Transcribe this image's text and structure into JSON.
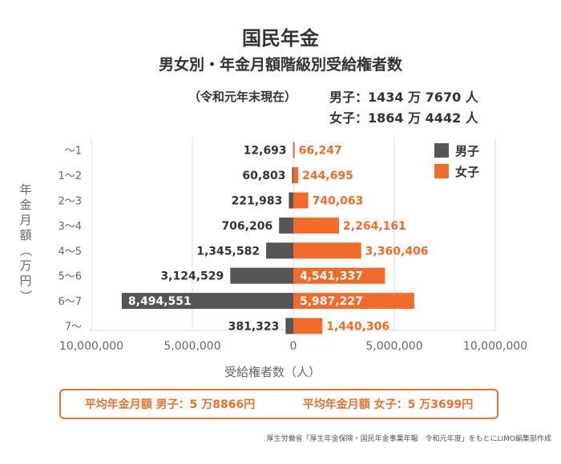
{
  "header": {
    "title": "国民年金",
    "subtitle": "男女別・年金月額階級別受給権者数",
    "as_of": "（令和元年末現在）",
    "male_total": "男子：1434 万 7670 人",
    "female_total": "女子：1864 万 4442 人"
  },
  "summary": {
    "male_avg": "平均年金月額 男子：5 万8866円",
    "female_avg": "平均年金月額 女子：5 万3699円"
  },
  "source": "厚生労働省「厚生年金保険・国民年金事業年報　令和元年度」をもとにLIMO編集部作成",
  "colors": {
    "male": "#555555",
    "female": "#f26b2a",
    "frame": "#e8722f"
  },
  "chart_data": {
    "type": "bar",
    "orientation": "horizontal-butterfly",
    "categories": [
      "〜1",
      "1〜2",
      "2〜3",
      "3〜4",
      "4〜5",
      "5〜6",
      "6〜7",
      "7〜"
    ],
    "series": [
      {
        "name": "男子",
        "values": [
          12693,
          60803,
          221983,
          706206,
          1345582,
          3124529,
          8494551,
          381323
        ],
        "labels": [
          "12,693",
          "60,803",
          "221,983",
          "706,206",
          "1,345,582",
          "3,124,529",
          "8,494,551",
          "381,323"
        ]
      },
      {
        "name": "女子",
        "values": [
          66247,
          244695,
          740063,
          2264161,
          3360406,
          4541337,
          5987227,
          1440306
        ],
        "labels": [
          "66,247",
          "244,695",
          "740,063",
          "2,264,161",
          "3,360,406",
          "4,541,337",
          "5,987,227",
          "1,440,306"
        ]
      }
    ],
    "ylabel": "年金月額（万円）",
    "xlabel": "受給権者数（人）",
    "xlim": [
      -10000000,
      10000000
    ],
    "xticks": [
      -10000000,
      -5000000,
      0,
      5000000,
      10000000
    ],
    "xtick_labels": [
      "10,000,000",
      "5,000,000",
      "0",
      "5,000,000",
      "10,000,000"
    ],
    "grid": true,
    "legend": "top-right"
  }
}
